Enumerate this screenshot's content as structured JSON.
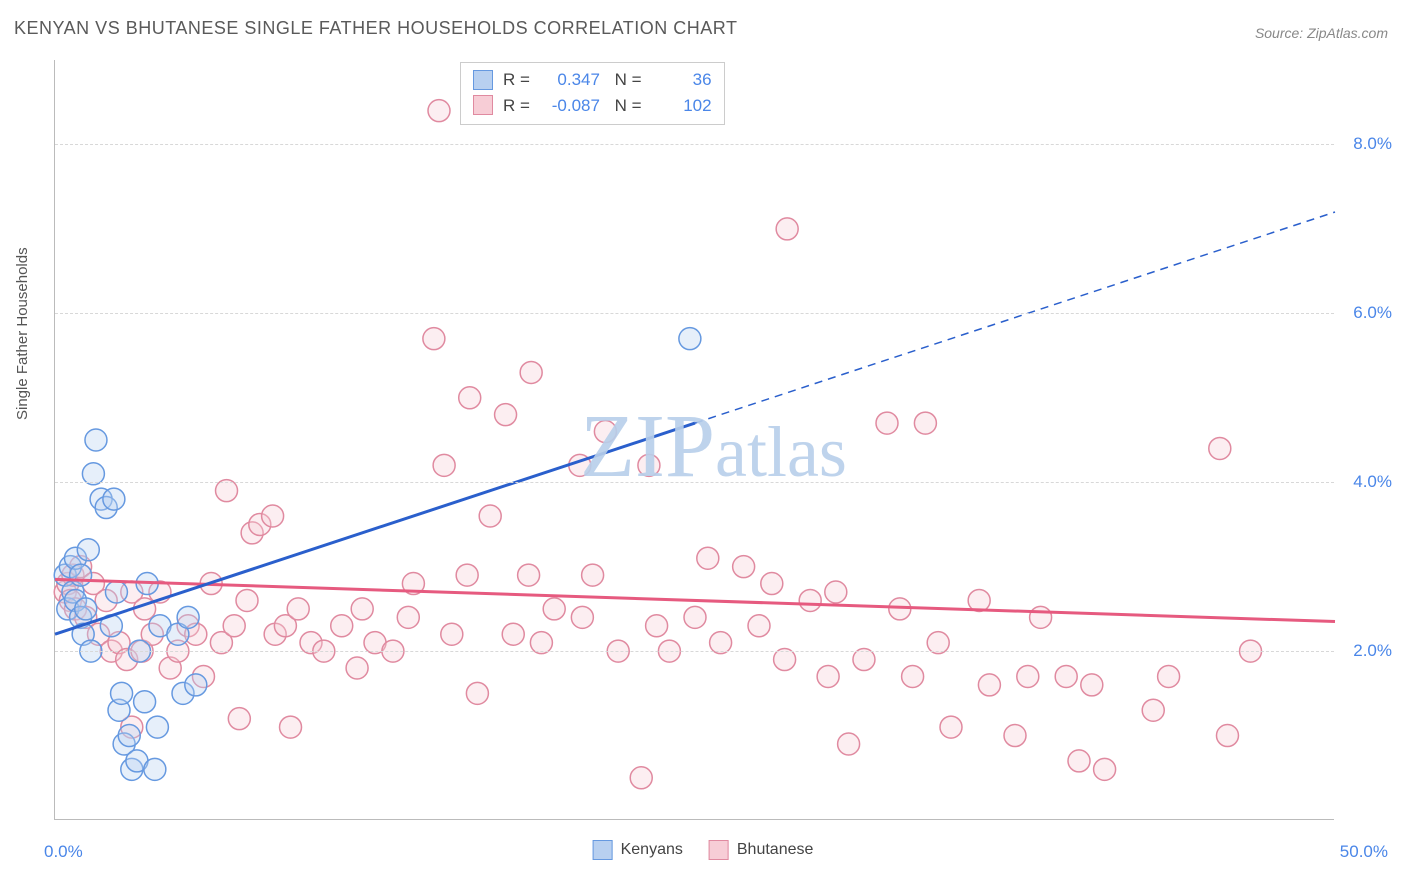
{
  "title": "KENYAN VS BHUTANESE SINGLE FATHER HOUSEHOLDS CORRELATION CHART",
  "source_prefix": "Source: ",
  "source_name": "ZipAtlas.com",
  "y_axis_label": "Single Father Households",
  "watermark": "ZIPatlas",
  "chart": {
    "type": "scatter",
    "xlim": [
      0,
      50
    ],
    "ylim": [
      0,
      9
    ],
    "x_tick_labels": [
      "0.0%",
      "50.0%"
    ],
    "y_ticks": [
      2,
      4,
      6,
      8
    ],
    "y_tick_labels": [
      "2.0%",
      "4.0%",
      "6.0%",
      "8.0%"
    ],
    "grid_color": "#d8d8d8",
    "axis_label_color": "#4a86e8",
    "background_color": "#ffffff",
    "marker_radius": 11,
    "marker_stroke_width": 1.5,
    "marker_fill_opacity": 0.35,
    "line_width": 3,
    "series": [
      {
        "name": "Kenyans",
        "color_fill": "#b8d0f0",
        "color_stroke": "#6699e0",
        "line_color": "#2a5fcc",
        "R": "0.347",
        "N": "36",
        "trend": {
          "x1": 0,
          "y1": 2.2,
          "x2": 25,
          "y2": 4.7,
          "x2_dash": 50,
          "y2_dash": 7.2
        },
        "points": [
          [
            0.4,
            2.9
          ],
          [
            0.5,
            2.5
          ],
          [
            0.6,
            3.0
          ],
          [
            0.7,
            2.7
          ],
          [
            0.8,
            2.6
          ],
          [
            0.8,
            3.1
          ],
          [
            1.0,
            2.4
          ],
          [
            1.0,
            2.9
          ],
          [
            1.1,
            2.2
          ],
          [
            1.2,
            2.5
          ],
          [
            1.3,
            3.2
          ],
          [
            1.4,
            2.0
          ],
          [
            1.5,
            4.1
          ],
          [
            1.6,
            4.5
          ],
          [
            1.8,
            3.8
          ],
          [
            2.0,
            3.7
          ],
          [
            2.2,
            2.3
          ],
          [
            2.3,
            3.8
          ],
          [
            2.4,
            2.7
          ],
          [
            2.5,
            1.3
          ],
          [
            2.6,
            1.5
          ],
          [
            2.7,
            0.9
          ],
          [
            2.9,
            1.0
          ],
          [
            3.0,
            0.6
          ],
          [
            3.2,
            0.7
          ],
          [
            3.3,
            2.0
          ],
          [
            3.5,
            1.4
          ],
          [
            3.6,
            2.8
          ],
          [
            3.9,
            0.6
          ],
          [
            4.0,
            1.1
          ],
          [
            4.1,
            2.3
          ],
          [
            4.8,
            2.2
          ],
          [
            5.0,
            1.5
          ],
          [
            5.2,
            2.4
          ],
          [
            5.5,
            1.6
          ],
          [
            24.8,
            5.7
          ]
        ]
      },
      {
        "name": "Bhutanese",
        "color_fill": "#f7cdd6",
        "color_stroke": "#e08aa0",
        "line_color": "#e65a7f",
        "R": "-0.087",
        "N": "102",
        "trend": {
          "x1": 0,
          "y1": 2.85,
          "x2": 50,
          "y2": 2.35
        },
        "points": [
          [
            0.4,
            2.7
          ],
          [
            0.5,
            2.8
          ],
          [
            0.6,
            2.6
          ],
          [
            0.7,
            2.9
          ],
          [
            0.8,
            2.5
          ],
          [
            1.0,
            3.0
          ],
          [
            1.2,
            2.4
          ],
          [
            1.5,
            2.8
          ],
          [
            1.7,
            2.2
          ],
          [
            2.0,
            2.6
          ],
          [
            2.2,
            2.0
          ],
          [
            2.5,
            2.1
          ],
          [
            2.8,
            1.9
          ],
          [
            3.0,
            2.7
          ],
          [
            3.0,
            1.1
          ],
          [
            3.4,
            2.0
          ],
          [
            3.5,
            2.5
          ],
          [
            3.8,
            2.2
          ],
          [
            4.1,
            2.7
          ],
          [
            4.5,
            1.8
          ],
          [
            4.8,
            2.0
          ],
          [
            5.2,
            2.3
          ],
          [
            5.5,
            2.2
          ],
          [
            5.8,
            1.7
          ],
          [
            6.1,
            2.8
          ],
          [
            6.5,
            2.1
          ],
          [
            6.7,
            3.9
          ],
          [
            7.0,
            2.3
          ],
          [
            7.2,
            1.2
          ],
          [
            7.5,
            2.6
          ],
          [
            7.7,
            3.4
          ],
          [
            8.0,
            3.5
          ],
          [
            8.5,
            3.6
          ],
          [
            8.6,
            2.2
          ],
          [
            9.0,
            2.3
          ],
          [
            9.2,
            1.1
          ],
          [
            9.5,
            2.5
          ],
          [
            10.0,
            2.1
          ],
          [
            10.5,
            2.0
          ],
          [
            11.2,
            2.3
          ],
          [
            11.8,
            1.8
          ],
          [
            12.0,
            2.5
          ],
          [
            12.5,
            2.1
          ],
          [
            13.2,
            2.0
          ],
          [
            13.8,
            2.4
          ],
          [
            14.0,
            2.8
          ],
          [
            14.8,
            5.7
          ],
          [
            15.2,
            4.2
          ],
          [
            15.0,
            8.4
          ],
          [
            15.5,
            2.2
          ],
          [
            16.2,
            5.0
          ],
          [
            16.1,
            2.9
          ],
          [
            16.5,
            1.5
          ],
          [
            17.0,
            3.6
          ],
          [
            17.6,
            4.8
          ],
          [
            17.9,
            2.2
          ],
          [
            18.5,
            2.9
          ],
          [
            18.6,
            5.3
          ],
          [
            19.0,
            2.1
          ],
          [
            19.5,
            2.5
          ],
          [
            20.5,
            4.2
          ],
          [
            20.6,
            2.4
          ],
          [
            21.0,
            2.9
          ],
          [
            21.5,
            4.6
          ],
          [
            22.0,
            2.0
          ],
          [
            22.9,
            0.5
          ],
          [
            23.5,
            2.3
          ],
          [
            23.2,
            4.2
          ],
          [
            24.0,
            2.0
          ],
          [
            25.0,
            2.4
          ],
          [
            25.5,
            3.1
          ],
          [
            26.0,
            2.1
          ],
          [
            26.9,
            3.0
          ],
          [
            27.5,
            2.3
          ],
          [
            28.0,
            2.8
          ],
          [
            28.5,
            1.9
          ],
          [
            28.6,
            7.0
          ],
          [
            29.5,
            2.6
          ],
          [
            30.2,
            1.7
          ],
          [
            30.5,
            2.7
          ],
          [
            31.0,
            0.9
          ],
          [
            31.6,
            1.9
          ],
          [
            32.5,
            4.7
          ],
          [
            33.0,
            2.5
          ],
          [
            33.5,
            1.7
          ],
          [
            34.0,
            4.7
          ],
          [
            34.5,
            2.1
          ],
          [
            35.0,
            1.1
          ],
          [
            36.1,
            2.6
          ],
          [
            36.5,
            1.6
          ],
          [
            37.5,
            1.0
          ],
          [
            38.0,
            1.7
          ],
          [
            38.5,
            2.4
          ],
          [
            39.5,
            1.7
          ],
          [
            40.0,
            0.7
          ],
          [
            40.5,
            1.6
          ],
          [
            41.0,
            0.6
          ],
          [
            42.9,
            1.3
          ],
          [
            43.5,
            1.7
          ],
          [
            45.5,
            4.4
          ],
          [
            45.8,
            1.0
          ],
          [
            46.7,
            2.0
          ]
        ]
      }
    ]
  },
  "bottom_legend": [
    {
      "label": "Kenyans",
      "swatch": "blue"
    },
    {
      "label": "Bhutanese",
      "swatch": "pink"
    }
  ]
}
